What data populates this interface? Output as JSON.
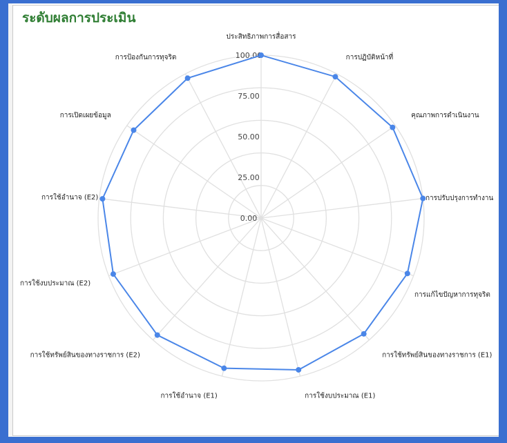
{
  "title": "ระดับผลการประเมิน",
  "colors": {
    "series": "#4a86e8",
    "border": "#3a6fd0",
    "title": "#2e7d32",
    "grid": "#e0e0e0"
  },
  "chart_data": {
    "type": "radar",
    "title": "ระดับผลการประเมิน",
    "categories": [
      "ประสิทธิภาพการสื่อสาร",
      "การปฏิบัติหน้าที่",
      "คุณภาพการดำเนินงาน",
      "การปรับปรุงการทำงาน",
      "การแก้ไขปัญหาการทุจริต",
      "การใช้ทรัพย์สินของทางราชการ (E1)",
      "การใช้งบประมาณ (E1)",
      "การใช้อำนาจ (E1)",
      "การใช้ทรัพย์สินของทางราชการ (E2)",
      "การใช้งบประมาณ (E2)",
      "การใช้อำนาจ (E2)",
      "การเปิดเผยข้อมูล",
      "การป้องกันการทุจริต"
    ],
    "series": [
      {
        "values": [
          100,
          98,
          98,
          100,
          96,
          95,
          96,
          95,
          96,
          97,
          98,
          95,
          97
        ]
      }
    ],
    "ticks": [
      "0.00",
      "25.00",
      "50.00",
      "75.00",
      "100.00"
    ],
    "rlim": [
      0,
      100
    ],
    "grid": true
  }
}
